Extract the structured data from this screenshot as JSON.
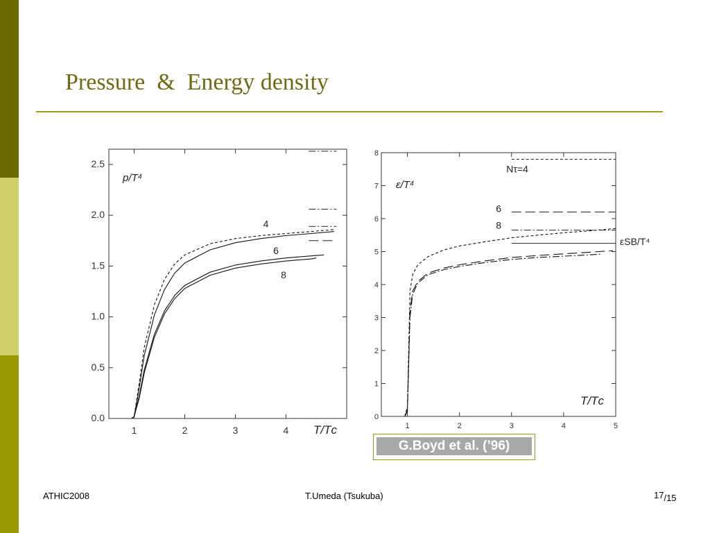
{
  "slide": {
    "title": "Pressure  &  Energy density",
    "citation": "G.Boyd et al. (’96)",
    "footer_left": "ATHIC2008",
    "footer_center": "T.Umeda (Tsukuba)",
    "page_number": "17",
    "page_total": "/15",
    "colors": {
      "title": "#6e6b14",
      "bar_dark": "#6b6b00",
      "bar_light": "#d0d06a",
      "bar_mid": "#9a9a00"
    }
  },
  "chart_data": [
    {
      "type": "line",
      "ylabel": "p/T⁴",
      "xlabel": "T/Tᴄ",
      "xlim": [
        0.5,
        5.2
      ],
      "ylim": [
        0,
        2.65
      ],
      "xticks": [
        "1",
        "2",
        "3",
        "4"
      ],
      "yticks": [
        "0.0",
        "0.5",
        "1.0",
        "1.5",
        "2.0",
        "2.5"
      ],
      "series": [
        {
          "name": "4",
          "style": "dashed",
          "x": [
            0.95,
            1.0,
            1.1,
            1.2,
            1.4,
            1.6,
            1.8,
            2.0,
            2.5,
            3.0,
            3.5,
            4.0,
            4.5,
            4.95
          ],
          "y": [
            0,
            0.02,
            0.35,
            0.7,
            1.12,
            1.37,
            1.52,
            1.61,
            1.72,
            1.77,
            1.8,
            1.82,
            1.84,
            1.86
          ]
        },
        {
          "name": "4",
          "style": "solid",
          "x": [
            0.95,
            1.0,
            1.1,
            1.2,
            1.4,
            1.6,
            1.8,
            2.0,
            2.5,
            3.0,
            3.5,
            4.0,
            4.5,
            4.95
          ],
          "y": [
            0,
            0.02,
            0.3,
            0.62,
            1.02,
            1.27,
            1.43,
            1.53,
            1.66,
            1.73,
            1.77,
            1.8,
            1.82,
            1.84
          ]
        },
        {
          "name": "6",
          "style": "solid",
          "x": [
            0.95,
            1.0,
            1.1,
            1.2,
            1.4,
            1.6,
            1.8,
            2.0,
            2.5,
            3.0,
            3.5,
            4.0,
            4.5,
            4.75
          ],
          "y": [
            0,
            0.02,
            0.22,
            0.48,
            0.83,
            1.06,
            1.21,
            1.31,
            1.44,
            1.51,
            1.55,
            1.58,
            1.6,
            1.61
          ]
        },
        {
          "name": "8",
          "style": "solid",
          "x": [
            0.95,
            1.0,
            1.1,
            1.2,
            1.4,
            1.6,
            1.8,
            2.0,
            2.5,
            3.0,
            3.5,
            4.0,
            4.5,
            4.6
          ],
          "y": [
            0,
            0.02,
            0.2,
            0.45,
            0.8,
            1.03,
            1.18,
            1.28,
            1.41,
            1.48,
            1.52,
            1.55,
            1.57,
            1.58
          ]
        }
      ],
      "sb_limits": [
        {
          "y": 2.63,
          "x": [
            4.45,
            5.0
          ],
          "style": "dashdot"
        },
        {
          "y": 2.06,
          "x": [
            4.45,
            5.0
          ],
          "style": "dashdot"
        },
        {
          "y": 1.89,
          "x": [
            4.45,
            5.0
          ],
          "style": "dashdot"
        },
        {
          "y": 1.75,
          "x": [
            4.45,
            5.0
          ],
          "style": "longdash"
        }
      ],
      "annotations": [
        {
          "text": "4",
          "x": 3.55,
          "y": 1.88
        },
        {
          "text": "6",
          "x": 3.75,
          "y": 1.62
        },
        {
          "text": "8",
          "x": 3.9,
          "y": 1.38
        }
      ]
    },
    {
      "type": "line",
      "ylabel": "ε/T⁴",
      "xlabel": "T/Tᴄ",
      "xlim": [
        0.5,
        5.0
      ],
      "ylim": [
        0,
        8
      ],
      "xticks": [
        "1",
        "2",
        "3",
        "4",
        "5"
      ],
      "yticks": [
        "0",
        "1",
        "2",
        "3",
        "4",
        "5",
        "6",
        "7",
        "8"
      ],
      "series": [
        {
          "name": "Nτ=4",
          "style": "dashed",
          "x": [
            0.95,
            1.0,
            1.05,
            1.1,
            1.2,
            1.4,
            1.7,
            2.0,
            2.5,
            3.0,
            3.5,
            4.0,
            4.5,
            5.0
          ],
          "y": [
            0,
            0.3,
            3.8,
            4.3,
            4.6,
            4.85,
            5.05,
            5.17,
            5.3,
            5.42,
            5.5,
            5.57,
            5.63,
            5.7
          ]
        },
        {
          "name": "6",
          "style": "longdash",
          "x": [
            0.95,
            1.0,
            1.05,
            1.1,
            1.2,
            1.4,
            1.7,
            2.0,
            2.5,
            3.0,
            3.5,
            4.0,
            4.5,
            4.95
          ],
          "y": [
            0,
            0.2,
            3.2,
            3.8,
            4.1,
            4.35,
            4.5,
            4.6,
            4.72,
            4.82,
            4.88,
            4.93,
            4.98,
            5.03
          ]
        },
        {
          "name": "8",
          "style": "dashdot",
          "x": [
            0.95,
            1.0,
            1.05,
            1.1,
            1.2,
            1.4,
            1.7,
            2.0,
            2.5,
            3.0,
            3.5,
            4.0,
            4.5,
            4.7
          ],
          "y": [
            0,
            0.15,
            3.0,
            3.7,
            4.05,
            4.3,
            4.45,
            4.55,
            4.67,
            4.76,
            4.82,
            4.86,
            4.9,
            4.92
          ]
        }
      ],
      "sb_limits": [
        {
          "y": 7.8,
          "x": [
            3.0,
            5.0
          ],
          "style": "dashed"
        },
        {
          "y": 6.2,
          "x": [
            3.0,
            5.0
          ],
          "style": "longdash"
        },
        {
          "y": 5.65,
          "x": [
            3.0,
            5.0
          ],
          "style": "dashdot"
        },
        {
          "y": 5.25,
          "x": [
            3.0,
            5.0
          ],
          "style": "solid"
        }
      ],
      "annotations": [
        {
          "text": "Nτ=4",
          "x": 2.9,
          "y": 7.4
        },
        {
          "text": "6",
          "x": 2.7,
          "y": 6.2
        },
        {
          "text": "8",
          "x": 2.7,
          "y": 5.7
        },
        {
          "text": "εSB/T⁴",
          "x": 5.08,
          "y": 5.2
        }
      ]
    }
  ]
}
